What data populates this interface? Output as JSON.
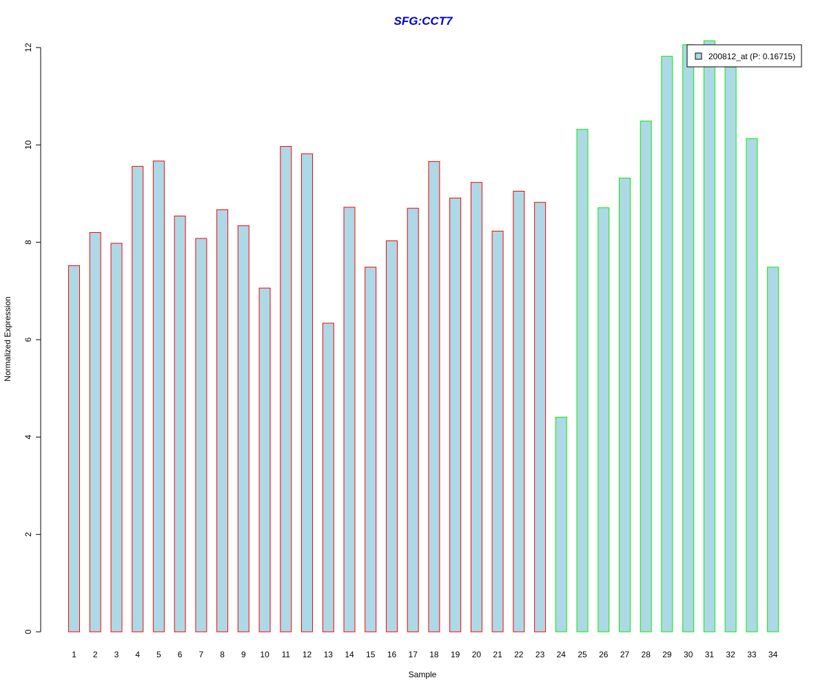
{
  "chart_data": {
    "type": "bar",
    "title": "SFG:CCT7",
    "title_color": "#0000CD",
    "xlabel": "Sample",
    "ylabel": "Normalized Expression",
    "ylim": [
      0,
      12
    ],
    "yticks": [
      0,
      2,
      4,
      6,
      8,
      10,
      12
    ],
    "categories": [
      "1",
      "2",
      "3",
      "4",
      "5",
      "6",
      "7",
      "8",
      "9",
      "10",
      "11",
      "12",
      "13",
      "14",
      "15",
      "16",
      "17",
      "18",
      "19",
      "20",
      "21",
      "22",
      "23",
      "24",
      "25",
      "26",
      "27",
      "28",
      "29",
      "30",
      "31",
      "32",
      "33",
      "34"
    ],
    "series": [
      {
        "name": "200812_at (P: 0.16715)",
        "fill_color": "#ADD8E6",
        "values": [
          7.52,
          8.2,
          7.98,
          9.56,
          9.67,
          8.54,
          8.08,
          8.67,
          8.34,
          7.06,
          9.97,
          9.82,
          6.34,
          8.72,
          7.49,
          8.03,
          8.7,
          9.66,
          8.91,
          9.23,
          8.23,
          9.05,
          8.82,
          4.41,
          10.32,
          8.71,
          9.32,
          10.49,
          11.82,
          12.06,
          12.14,
          11.6,
          10.13,
          7.49
        ],
        "border_colors": [
          "#FF0000",
          "#FF0000",
          "#FF0000",
          "#FF0000",
          "#FF0000",
          "#FF0000",
          "#FF0000",
          "#FF0000",
          "#FF0000",
          "#FF0000",
          "#FF0000",
          "#FF0000",
          "#FF0000",
          "#FF0000",
          "#FF0000",
          "#FF0000",
          "#FF0000",
          "#FF0000",
          "#FF0000",
          "#FF0000",
          "#FF0000",
          "#FF0000",
          "#FF0000",
          "#00EE00",
          "#00EE00",
          "#00EE00",
          "#00EE00",
          "#00EE00",
          "#00EE00",
          "#00EE00",
          "#00EE00",
          "#00EE00",
          "#00EE00",
          "#00EE00"
        ]
      }
    ],
    "legend": {
      "position": "top-right",
      "label": "200812_at (P: 0.16715)"
    },
    "grid": false
  }
}
